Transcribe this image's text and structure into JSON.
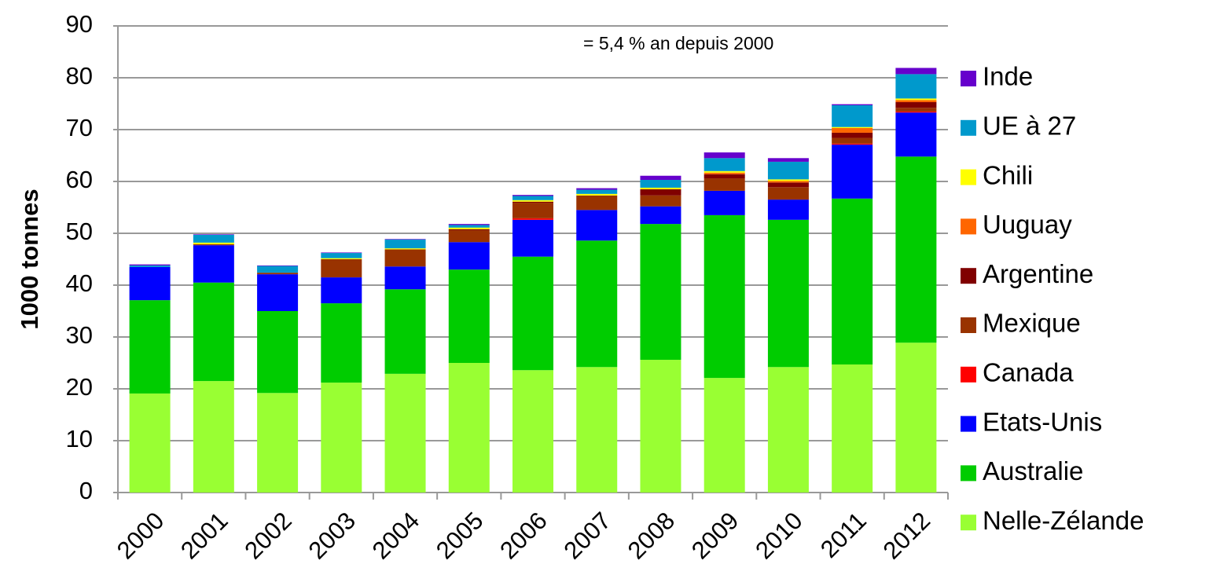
{
  "chart_data": {
    "type": "stacked_bar",
    "ylabel": "1000 tonnes",
    "annotation": "= 5,4 % an depuis 2000",
    "categories": [
      "2000",
      "2001",
      "2002",
      "2003",
      "2004",
      "2005",
      "2006",
      "2007",
      "2008",
      "2009",
      "2010",
      "2011",
      "2012"
    ],
    "ylim": [
      0,
      90
    ],
    "yticks": [
      0,
      10,
      20,
      30,
      40,
      50,
      60,
      70,
      80,
      90
    ],
    "grid": true,
    "legend": "right",
    "series": [
      {
        "name": "Nelle-Zélande",
        "color": "#99ff33",
        "values": [
          19.1,
          21.5,
          19.2,
          21.2,
          22.9,
          25,
          23.6,
          24.2,
          25.6,
          22.1,
          24.2,
          24.7,
          28.9
        ]
      },
      {
        "name": "Australie",
        "color": "#00cc00",
        "values": [
          18,
          19,
          15.8,
          15.3,
          16.3,
          18,
          21.9,
          24.4,
          26.2,
          31.4,
          28.4,
          32,
          35.9
        ]
      },
      {
        "name": "Etats-Unis",
        "color": "#0000ff",
        "values": [
          6.4,
          7.2,
          7.1,
          5,
          4.4,
          5.3,
          7.1,
          5.9,
          3.4,
          4.7,
          3.9,
          10.4,
          8.5
        ]
      },
      {
        "name": "Canada",
        "color": "#ff0000",
        "values": [
          0,
          0,
          0,
          0,
          0,
          0,
          0.3,
          0,
          0,
          0,
          0,
          0.2,
          0.2
        ]
      },
      {
        "name": "Mexique",
        "color": "#993300",
        "values": [
          0,
          0.2,
          0.3,
          3.5,
          3.3,
          2.3,
          3,
          2.8,
          2.1,
          2.4,
          2.4,
          1.1,
          0.7
        ]
      },
      {
        "name": "Argentine",
        "color": "#800000",
        "values": [
          0,
          0,
          0,
          0,
          0,
          0.2,
          0.2,
          0,
          1.2,
          0.8,
          0.9,
          1,
          1.1
        ]
      },
      {
        "name": "Uuguay",
        "color": "#ff6600",
        "values": [
          0,
          0,
          0,
          0,
          0,
          0,
          0,
          0,
          0,
          0.3,
          0.3,
          0.9,
          0.4
        ]
      },
      {
        "name": "Chili",
        "color": "#ffff00",
        "values": [
          0,
          0.3,
          0,
          0.2,
          0.2,
          0.3,
          0.3,
          0.3,
          0.3,
          0.3,
          0.3,
          0.2,
          0.3
        ]
      },
      {
        "name": "UE à 27",
        "color": "#0099cc",
        "values": [
          0.3,
          1.5,
          1.3,
          1,
          1.7,
          0.5,
          0.8,
          0.8,
          1.5,
          2.5,
          3.4,
          4.2,
          4.7
        ]
      },
      {
        "name": "Inde",
        "color": "#6600cc",
        "values": [
          0.2,
          0.1,
          0.1,
          0.1,
          0.1,
          0.2,
          0.2,
          0.3,
          0.8,
          1.1,
          0.7,
          0.2,
          1.2
        ]
      }
    ]
  }
}
